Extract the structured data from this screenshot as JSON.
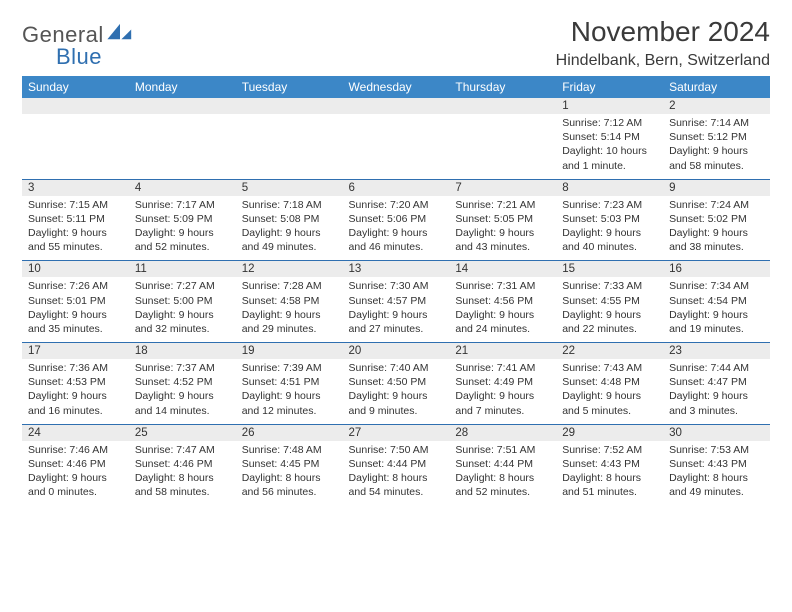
{
  "brand": {
    "part1": "General",
    "part2": "Blue"
  },
  "title": "November 2024",
  "location": "Hindelbank, Bern, Switzerland",
  "colors": {
    "header_bg": "#3c87c7",
    "header_fg": "#ffffff",
    "daynum_bg": "#ececec",
    "rule": "#2f6fb0",
    "text": "#333333"
  },
  "weekdays": [
    "Sunday",
    "Monday",
    "Tuesday",
    "Wednesday",
    "Thursday",
    "Friday",
    "Saturday"
  ],
  "weeks": [
    [
      null,
      null,
      null,
      null,
      null,
      {
        "n": "1",
        "sr": "Sunrise: 7:12 AM",
        "ss": "Sunset: 5:14 PM",
        "d1": "Daylight: 10 hours",
        "d2": "and 1 minute."
      },
      {
        "n": "2",
        "sr": "Sunrise: 7:14 AM",
        "ss": "Sunset: 5:12 PM",
        "d1": "Daylight: 9 hours",
        "d2": "and 58 minutes."
      }
    ],
    [
      {
        "n": "3",
        "sr": "Sunrise: 7:15 AM",
        "ss": "Sunset: 5:11 PM",
        "d1": "Daylight: 9 hours",
        "d2": "and 55 minutes."
      },
      {
        "n": "4",
        "sr": "Sunrise: 7:17 AM",
        "ss": "Sunset: 5:09 PM",
        "d1": "Daylight: 9 hours",
        "d2": "and 52 minutes."
      },
      {
        "n": "5",
        "sr": "Sunrise: 7:18 AM",
        "ss": "Sunset: 5:08 PM",
        "d1": "Daylight: 9 hours",
        "d2": "and 49 minutes."
      },
      {
        "n": "6",
        "sr": "Sunrise: 7:20 AM",
        "ss": "Sunset: 5:06 PM",
        "d1": "Daylight: 9 hours",
        "d2": "and 46 minutes."
      },
      {
        "n": "7",
        "sr": "Sunrise: 7:21 AM",
        "ss": "Sunset: 5:05 PM",
        "d1": "Daylight: 9 hours",
        "d2": "and 43 minutes."
      },
      {
        "n": "8",
        "sr": "Sunrise: 7:23 AM",
        "ss": "Sunset: 5:03 PM",
        "d1": "Daylight: 9 hours",
        "d2": "and 40 minutes."
      },
      {
        "n": "9",
        "sr": "Sunrise: 7:24 AM",
        "ss": "Sunset: 5:02 PM",
        "d1": "Daylight: 9 hours",
        "d2": "and 38 minutes."
      }
    ],
    [
      {
        "n": "10",
        "sr": "Sunrise: 7:26 AM",
        "ss": "Sunset: 5:01 PM",
        "d1": "Daylight: 9 hours",
        "d2": "and 35 minutes."
      },
      {
        "n": "11",
        "sr": "Sunrise: 7:27 AM",
        "ss": "Sunset: 5:00 PM",
        "d1": "Daylight: 9 hours",
        "d2": "and 32 minutes."
      },
      {
        "n": "12",
        "sr": "Sunrise: 7:28 AM",
        "ss": "Sunset: 4:58 PM",
        "d1": "Daylight: 9 hours",
        "d2": "and 29 minutes."
      },
      {
        "n": "13",
        "sr": "Sunrise: 7:30 AM",
        "ss": "Sunset: 4:57 PM",
        "d1": "Daylight: 9 hours",
        "d2": "and 27 minutes."
      },
      {
        "n": "14",
        "sr": "Sunrise: 7:31 AM",
        "ss": "Sunset: 4:56 PM",
        "d1": "Daylight: 9 hours",
        "d2": "and 24 minutes."
      },
      {
        "n": "15",
        "sr": "Sunrise: 7:33 AM",
        "ss": "Sunset: 4:55 PM",
        "d1": "Daylight: 9 hours",
        "d2": "and 22 minutes."
      },
      {
        "n": "16",
        "sr": "Sunrise: 7:34 AM",
        "ss": "Sunset: 4:54 PM",
        "d1": "Daylight: 9 hours",
        "d2": "and 19 minutes."
      }
    ],
    [
      {
        "n": "17",
        "sr": "Sunrise: 7:36 AM",
        "ss": "Sunset: 4:53 PM",
        "d1": "Daylight: 9 hours",
        "d2": "and 16 minutes."
      },
      {
        "n": "18",
        "sr": "Sunrise: 7:37 AM",
        "ss": "Sunset: 4:52 PM",
        "d1": "Daylight: 9 hours",
        "d2": "and 14 minutes."
      },
      {
        "n": "19",
        "sr": "Sunrise: 7:39 AM",
        "ss": "Sunset: 4:51 PM",
        "d1": "Daylight: 9 hours",
        "d2": "and 12 minutes."
      },
      {
        "n": "20",
        "sr": "Sunrise: 7:40 AM",
        "ss": "Sunset: 4:50 PM",
        "d1": "Daylight: 9 hours",
        "d2": "and 9 minutes."
      },
      {
        "n": "21",
        "sr": "Sunrise: 7:41 AM",
        "ss": "Sunset: 4:49 PM",
        "d1": "Daylight: 9 hours",
        "d2": "and 7 minutes."
      },
      {
        "n": "22",
        "sr": "Sunrise: 7:43 AM",
        "ss": "Sunset: 4:48 PM",
        "d1": "Daylight: 9 hours",
        "d2": "and 5 minutes."
      },
      {
        "n": "23",
        "sr": "Sunrise: 7:44 AM",
        "ss": "Sunset: 4:47 PM",
        "d1": "Daylight: 9 hours",
        "d2": "and 3 minutes."
      }
    ],
    [
      {
        "n": "24",
        "sr": "Sunrise: 7:46 AM",
        "ss": "Sunset: 4:46 PM",
        "d1": "Daylight: 9 hours",
        "d2": "and 0 minutes."
      },
      {
        "n": "25",
        "sr": "Sunrise: 7:47 AM",
        "ss": "Sunset: 4:46 PM",
        "d1": "Daylight: 8 hours",
        "d2": "and 58 minutes."
      },
      {
        "n": "26",
        "sr": "Sunrise: 7:48 AM",
        "ss": "Sunset: 4:45 PM",
        "d1": "Daylight: 8 hours",
        "d2": "and 56 minutes."
      },
      {
        "n": "27",
        "sr": "Sunrise: 7:50 AM",
        "ss": "Sunset: 4:44 PM",
        "d1": "Daylight: 8 hours",
        "d2": "and 54 minutes."
      },
      {
        "n": "28",
        "sr": "Sunrise: 7:51 AM",
        "ss": "Sunset: 4:44 PM",
        "d1": "Daylight: 8 hours",
        "d2": "and 52 minutes."
      },
      {
        "n": "29",
        "sr": "Sunrise: 7:52 AM",
        "ss": "Sunset: 4:43 PM",
        "d1": "Daylight: 8 hours",
        "d2": "and 51 minutes."
      },
      {
        "n": "30",
        "sr": "Sunrise: 7:53 AM",
        "ss": "Sunset: 4:43 PM",
        "d1": "Daylight: 8 hours",
        "d2": "and 49 minutes."
      }
    ]
  ]
}
